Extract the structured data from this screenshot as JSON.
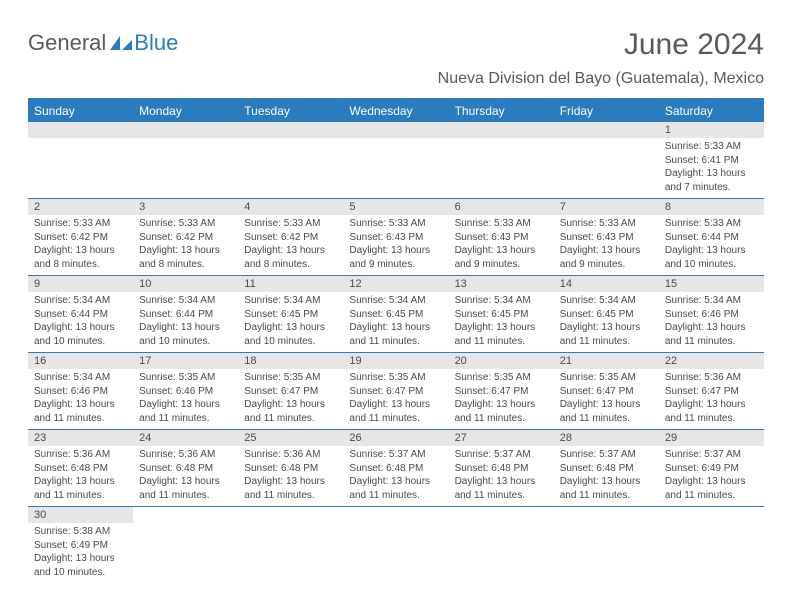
{
  "logo": {
    "part1": "General",
    "part2": "Blue"
  },
  "title": "June 2024",
  "location": "Nueva Division del Bayo (Guatemala), Mexico",
  "colors": {
    "header_bg": "#2b7bbf",
    "header_text": "#ffffff",
    "daynum_bg": "#e6e6e6",
    "text": "#4a4a4a",
    "background": "#ffffff"
  },
  "dayNames": [
    "Sunday",
    "Monday",
    "Tuesday",
    "Wednesday",
    "Thursday",
    "Friday",
    "Saturday"
  ],
  "weeks": [
    [
      null,
      null,
      null,
      null,
      null,
      null,
      {
        "n": "1",
        "sr": "5:33 AM",
        "ss": "6:41 PM",
        "dl": "13 hours and 7 minutes."
      }
    ],
    [
      {
        "n": "2",
        "sr": "5:33 AM",
        "ss": "6:42 PM",
        "dl": "13 hours and 8 minutes."
      },
      {
        "n": "3",
        "sr": "5:33 AM",
        "ss": "6:42 PM",
        "dl": "13 hours and 8 minutes."
      },
      {
        "n": "4",
        "sr": "5:33 AM",
        "ss": "6:42 PM",
        "dl": "13 hours and 8 minutes."
      },
      {
        "n": "5",
        "sr": "5:33 AM",
        "ss": "6:43 PM",
        "dl": "13 hours and 9 minutes."
      },
      {
        "n": "6",
        "sr": "5:33 AM",
        "ss": "6:43 PM",
        "dl": "13 hours and 9 minutes."
      },
      {
        "n": "7",
        "sr": "5:33 AM",
        "ss": "6:43 PM",
        "dl": "13 hours and 9 minutes."
      },
      {
        "n": "8",
        "sr": "5:33 AM",
        "ss": "6:44 PM",
        "dl": "13 hours and 10 minutes."
      }
    ],
    [
      {
        "n": "9",
        "sr": "5:34 AM",
        "ss": "6:44 PM",
        "dl": "13 hours and 10 minutes."
      },
      {
        "n": "10",
        "sr": "5:34 AM",
        "ss": "6:44 PM",
        "dl": "13 hours and 10 minutes."
      },
      {
        "n": "11",
        "sr": "5:34 AM",
        "ss": "6:45 PM",
        "dl": "13 hours and 10 minutes."
      },
      {
        "n": "12",
        "sr": "5:34 AM",
        "ss": "6:45 PM",
        "dl": "13 hours and 11 minutes."
      },
      {
        "n": "13",
        "sr": "5:34 AM",
        "ss": "6:45 PM",
        "dl": "13 hours and 11 minutes."
      },
      {
        "n": "14",
        "sr": "5:34 AM",
        "ss": "6:45 PM",
        "dl": "13 hours and 11 minutes."
      },
      {
        "n": "15",
        "sr": "5:34 AM",
        "ss": "6:46 PM",
        "dl": "13 hours and 11 minutes."
      }
    ],
    [
      {
        "n": "16",
        "sr": "5:34 AM",
        "ss": "6:46 PM",
        "dl": "13 hours and 11 minutes."
      },
      {
        "n": "17",
        "sr": "5:35 AM",
        "ss": "6:46 PM",
        "dl": "13 hours and 11 minutes."
      },
      {
        "n": "18",
        "sr": "5:35 AM",
        "ss": "6:47 PM",
        "dl": "13 hours and 11 minutes."
      },
      {
        "n": "19",
        "sr": "5:35 AM",
        "ss": "6:47 PM",
        "dl": "13 hours and 11 minutes."
      },
      {
        "n": "20",
        "sr": "5:35 AM",
        "ss": "6:47 PM",
        "dl": "13 hours and 11 minutes."
      },
      {
        "n": "21",
        "sr": "5:35 AM",
        "ss": "6:47 PM",
        "dl": "13 hours and 11 minutes."
      },
      {
        "n": "22",
        "sr": "5:36 AM",
        "ss": "6:47 PM",
        "dl": "13 hours and 11 minutes."
      }
    ],
    [
      {
        "n": "23",
        "sr": "5:36 AM",
        "ss": "6:48 PM",
        "dl": "13 hours and 11 minutes."
      },
      {
        "n": "24",
        "sr": "5:36 AM",
        "ss": "6:48 PM",
        "dl": "13 hours and 11 minutes."
      },
      {
        "n": "25",
        "sr": "5:36 AM",
        "ss": "6:48 PM",
        "dl": "13 hours and 11 minutes."
      },
      {
        "n": "26",
        "sr": "5:37 AM",
        "ss": "6:48 PM",
        "dl": "13 hours and 11 minutes."
      },
      {
        "n": "27",
        "sr": "5:37 AM",
        "ss": "6:48 PM",
        "dl": "13 hours and 11 minutes."
      },
      {
        "n": "28",
        "sr": "5:37 AM",
        "ss": "6:48 PM",
        "dl": "13 hours and 11 minutes."
      },
      {
        "n": "29",
        "sr": "5:37 AM",
        "ss": "6:49 PM",
        "dl": "13 hours and 11 minutes."
      }
    ],
    [
      {
        "n": "30",
        "sr": "5:38 AM",
        "ss": "6:49 PM",
        "dl": "13 hours and 10 minutes."
      },
      null,
      null,
      null,
      null,
      null,
      null
    ]
  ],
  "labels": {
    "sunrise": "Sunrise:",
    "sunset": "Sunset:",
    "daylight": "Daylight:"
  }
}
